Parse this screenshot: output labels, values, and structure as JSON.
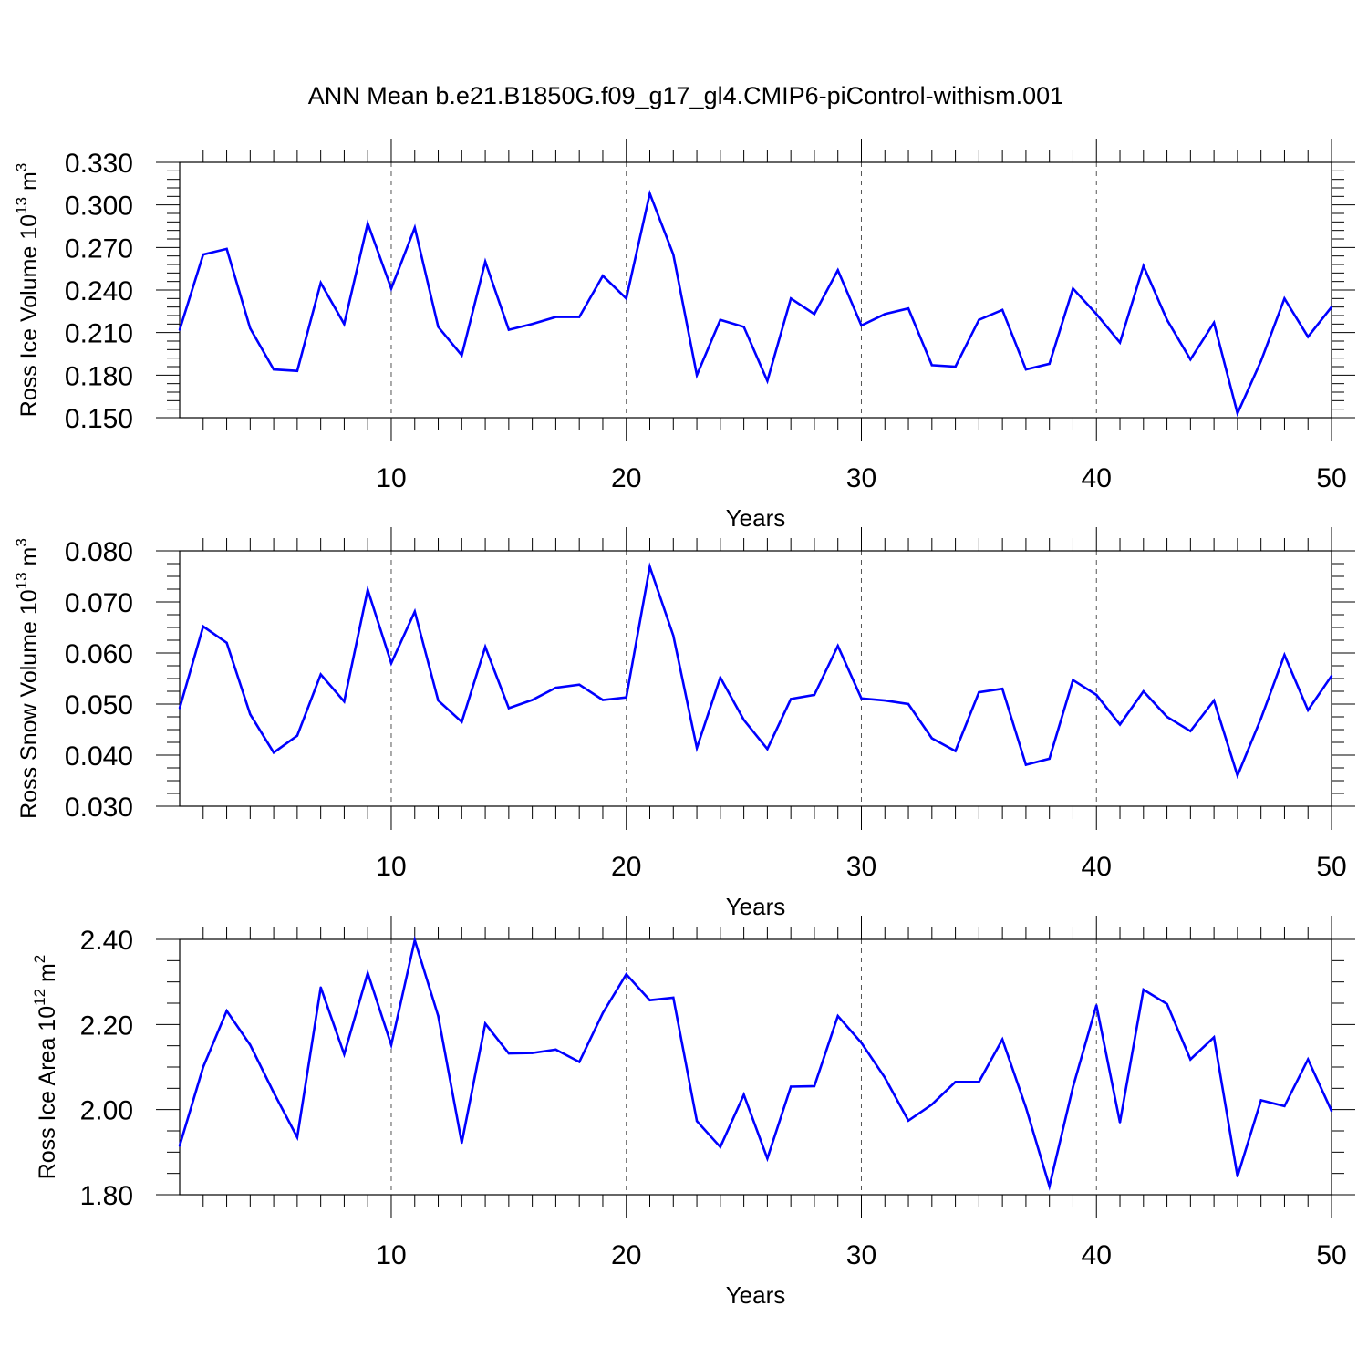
{
  "title": "ANN Mean b.e21.B1850G.f09_g17_gl4.CMIP6-piControl-withism.001",
  "line_color": "#0000ff",
  "chart_data": [
    {
      "type": "line",
      "ylabel_main": "Ross Ice Volume 10",
      "ylabel_exp1": "13",
      "ylabel_mid": " m",
      "ylabel_exp2": "3",
      "xlabel": "Years",
      "xlim": [
        1,
        50
      ],
      "ylim": [
        0.15,
        0.33
      ],
      "yticks": [
        "0.150",
        "0.180",
        "0.210",
        "0.240",
        "0.270",
        "0.300",
        "0.330"
      ],
      "xticks": [
        "10",
        "20",
        "30",
        "40",
        "50"
      ],
      "series": [
        {
          "x": [
            1,
            2,
            3,
            4,
            5,
            6,
            7,
            8,
            9,
            10,
            11,
            12,
            13,
            14,
            15,
            16,
            17,
            18,
            19,
            20,
            21,
            22,
            23,
            24,
            25,
            26,
            27,
            28,
            29,
            30,
            31,
            32,
            33,
            34,
            35,
            36,
            37,
            38,
            39,
            40,
            41,
            42,
            43,
            44,
            45,
            46,
            47,
            48,
            49,
            50
          ],
          "y": [
            0.212,
            0.265,
            0.269,
            0.213,
            0.184,
            0.183,
            0.245,
            0.216,
            0.287,
            0.241,
            0.284,
            0.214,
            0.194,
            0.26,
            0.212,
            0.216,
            0.221,
            0.221,
            0.25,
            0.234,
            0.308,
            0.265,
            0.18,
            0.219,
            0.214,
            0.176,
            0.234,
            0.223,
            0.254,
            0.215,
            0.223,
            0.227,
            0.187,
            0.186,
            0.219,
            0.226,
            0.184,
            0.188,
            0.241,
            0.223,
            0.203,
            0.257,
            0.219,
            0.191,
            0.217,
            0.153,
            0.19,
            0.234,
            0.207,
            0.228
          ]
        }
      ]
    },
    {
      "type": "line",
      "ylabel_main": "Ross Snow Volume 10",
      "ylabel_exp1": "13",
      "ylabel_mid": " m",
      "ylabel_exp2": "3",
      "xlabel": "Years",
      "xlim": [
        1,
        50
      ],
      "ylim": [
        0.03,
        0.08
      ],
      "yticks": [
        "0.030",
        "0.040",
        "0.050",
        "0.060",
        "0.070",
        "0.080"
      ],
      "xticks": [
        "10",
        "20",
        "30",
        "40",
        "50"
      ],
      "series": [
        {
          "x": [
            1,
            2,
            3,
            4,
            5,
            6,
            7,
            8,
            9,
            10,
            11,
            12,
            13,
            14,
            15,
            16,
            17,
            18,
            19,
            20,
            21,
            22,
            23,
            24,
            25,
            26,
            27,
            28,
            29,
            30,
            31,
            32,
            33,
            34,
            35,
            36,
            37,
            38,
            39,
            40,
            41,
            42,
            43,
            44,
            45,
            46,
            47,
            48,
            49,
            50
          ],
          "y": [
            0.0492,
            0.0652,
            0.062,
            0.048,
            0.0405,
            0.0438,
            0.0558,
            0.0505,
            0.0724,
            0.058,
            0.0681,
            0.0507,
            0.0465,
            0.0612,
            0.0492,
            0.0508,
            0.0532,
            0.0538,
            0.0508,
            0.0513,
            0.0769,
            0.0634,
            0.0414,
            0.0552,
            0.0469,
            0.0412,
            0.051,
            0.0518,
            0.0614,
            0.0511,
            0.0507,
            0.05,
            0.0433,
            0.0408,
            0.0523,
            0.053,
            0.0381,
            0.0393,
            0.0547,
            0.0518,
            0.046,
            0.0525,
            0.0475,
            0.0447,
            0.0507,
            0.036,
            0.0472,
            0.0596,
            0.0488,
            0.0555
          ]
        }
      ]
    },
    {
      "type": "line",
      "ylabel_main": "Ross Ice Area 10",
      "ylabel_exp1": "12",
      "ylabel_mid": " m",
      "ylabel_exp2": "2",
      "xlabel": "Years",
      "xlim": [
        1,
        50
      ],
      "ylim": [
        1.8,
        2.4
      ],
      "yticks": [
        "1.80",
        "2.00",
        "2.20",
        "2.40"
      ],
      "xticks": [
        "10",
        "20",
        "30",
        "40",
        "50"
      ],
      "series": [
        {
          "x": [
            1,
            2,
            3,
            4,
            5,
            6,
            7,
            8,
            9,
            10,
            11,
            12,
            13,
            14,
            15,
            16,
            17,
            18,
            19,
            20,
            21,
            22,
            23,
            24,
            25,
            26,
            27,
            28,
            29,
            30,
            31,
            32,
            33,
            34,
            35,
            36,
            37,
            38,
            39,
            40,
            41,
            42,
            43,
            44,
            45,
            46,
            47,
            48,
            49,
            50
          ],
          "y": [
            1.915,
            2.1,
            2.232,
            2.152,
            2.04,
            1.935,
            2.287,
            2.13,
            2.321,
            2.152,
            2.398,
            2.22,
            1.922,
            2.202,
            2.132,
            2.133,
            2.141,
            2.112,
            2.227,
            2.318,
            2.257,
            2.263,
            1.973,
            1.912,
            2.035,
            1.885,
            2.054,
            2.055,
            2.22,
            2.157,
            2.075,
            1.974,
            2.012,
            2.065,
            2.065,
            2.165,
            2.005,
            1.82,
            2.053,
            2.245,
            1.97,
            2.282,
            2.248,
            2.118,
            2.17,
            1.843,
            2.022,
            2.008,
            2.118,
            1.997
          ]
        }
      ]
    }
  ]
}
